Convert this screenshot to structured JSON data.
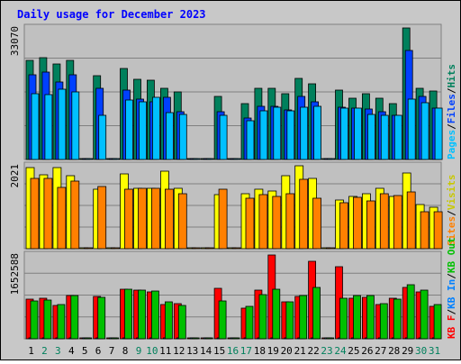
{
  "title": "Daily usage for December 2023",
  "colors": {
    "page_bg": "#c8c8c8",
    "panel_bg": "#c0c0c0",
    "border": "#808080",
    "title": "#0000ff",
    "hits": "#00805c",
    "files": "#0040ff",
    "pages": "#00c0ff",
    "visits": "#ffff00",
    "sites": "#ff8000",
    "kbf": "#ff0000",
    "kbin": "#0080ff",
    "kbout": "#00c000",
    "day_weekday": "#000000",
    "day_weekend": "#00805c"
  },
  "legend": {
    "top": [
      {
        "text": "Pages",
        "color": "#00c0ff"
      },
      {
        "text": "Files",
        "color": "#0040ff"
      },
      {
        "text": "Hits",
        "color": "#00805c"
      }
    ],
    "middle": [
      {
        "text": "Sites",
        "color": "#ff8000"
      },
      {
        "text": "Visits",
        "color": "#c8c800"
      }
    ],
    "bottom": [
      {
        "text": "KB F",
        "color": "#ff0000"
      },
      {
        "text": "KB In",
        "color": "#0080ff"
      },
      {
        "text": "KB Out",
        "color": "#00c000"
      }
    ],
    "separator": "/"
  },
  "chart_data": [
    {
      "type": "bar",
      "panel": "hits-files-pages",
      "ymax_label": "33070",
      "ylim": [
        0,
        33070
      ],
      "categories": [
        "1",
        "2",
        "3",
        "4",
        "5",
        "6",
        "7",
        "8",
        "9",
        "10",
        "11",
        "12",
        "13",
        "14",
        "15",
        "16",
        "17",
        "18",
        "19",
        "20",
        "21",
        "22",
        "23",
        "24",
        "25",
        "26",
        "27",
        "28",
        "29",
        "30",
        "31"
      ],
      "series": [
        {
          "name": "Hits",
          "values": [
            25000,
            25600,
            23900,
            24900,
            0,
            21000,
            0,
            22900,
            20100,
            20000,
            17900,
            17100,
            0,
            0,
            15800,
            0,
            14100,
            17900,
            17800,
            16600,
            20300,
            19100,
            0,
            17400,
            15500,
            16500,
            15400,
            14100,
            33070,
            17800,
            17300
          ]
        },
        {
          "name": "Files",
          "values": [
            21300,
            21900,
            19400,
            21400,
            0,
            18000,
            0,
            17500,
            15200,
            14600,
            15600,
            12100,
            0,
            0,
            11900,
            0,
            10500,
            13400,
            13300,
            12400,
            15900,
            14600,
            0,
            13200,
            13000,
            12700,
            12100,
            11200,
            27300,
            15900,
            13000
          ]
        },
        {
          "name": "Pages",
          "values": [
            16500,
            16300,
            17700,
            17100,
            0,
            11000,
            0,
            15000,
            14500,
            15700,
            11800,
            11300,
            0,
            0,
            11200,
            0,
            9700,
            12200,
            13200,
            12300,
            13100,
            13400,
            0,
            13000,
            12800,
            11400,
            11000,
            11000,
            15100,
            14200,
            12800
          ]
        }
      ]
    },
    {
      "type": "bar",
      "panel": "visits-sites",
      "ymax_label": "2021",
      "ylim": [
        0,
        2021
      ],
      "categories": [
        "1",
        "2",
        "3",
        "4",
        "5",
        "6",
        "7",
        "8",
        "9",
        "10",
        "11",
        "12",
        "13",
        "14",
        "15",
        "16",
        "17",
        "18",
        "19",
        "20",
        "21",
        "22",
        "23",
        "24",
        "25",
        "26",
        "27",
        "28",
        "29",
        "30",
        "31"
      ],
      "series": [
        {
          "name": "Visits",
          "values": [
            1980,
            1800,
            1970,
            1770,
            0,
            1460,
            0,
            1820,
            1470,
            1470,
            1890,
            1470,
            0,
            0,
            1320,
            0,
            1340,
            1450,
            1400,
            1770,
            2021,
            1720,
            0,
            1190,
            1270,
            1350,
            1470,
            1280,
            1840,
            1070,
            1000
          ]
        },
        {
          "name": "Sites",
          "values": [
            1710,
            1710,
            1490,
            1650,
            0,
            1510,
            0,
            1440,
            1480,
            1480,
            1460,
            1330,
            0,
            0,
            1460,
            0,
            1240,
            1320,
            1280,
            1340,
            1700,
            1230,
            0,
            1120,
            1250,
            1160,
            1350,
            1290,
            1380,
            890,
            900
          ]
        }
      ]
    },
    {
      "type": "bar",
      "panel": "kbf-kbin-kbout",
      "ymax_label": "1652588",
      "ylim": [
        0,
        1652588
      ],
      "categories": [
        "1",
        "2",
        "3",
        "4",
        "5",
        "6",
        "7",
        "8",
        "9",
        "10",
        "11",
        "12",
        "13",
        "14",
        "15",
        "16",
        "17",
        "18",
        "19",
        "20",
        "21",
        "22",
        "23",
        "24",
        "25",
        "26",
        "27",
        "28",
        "29",
        "30",
        "31"
      ],
      "series": [
        {
          "name": "KB F",
          "values": [
            781000,
            801000,
            661000,
            851000,
            0,
            831000,
            0,
            981000,
            961000,
            921000,
            681000,
            701000,
            0,
            0,
            1000000,
            0,
            600000,
            956000,
            1652588,
            721000,
            841000,
            1530000,
            0,
            1420000,
            801000,
            821000,
            681000,
            801000,
            1021000,
            931000,
            631000
          ]
        },
        {
          "name": "KB In",
          "values": [
            0,
            0,
            0,
            0,
            0,
            0,
            0,
            0,
            0,
            0,
            0,
            0,
            0,
            0,
            0,
            0,
            0,
            0,
            0,
            0,
            0,
            0,
            0,
            0,
            0,
            0,
            0,
            0,
            0,
            0,
            0
          ]
        },
        {
          "name": "KB Out",
          "values": [
            741000,
            771000,
            681000,
            851000,
            0,
            811000,
            0,
            981000,
            961000,
            941000,
            721000,
            651000,
            0,
            0,
            751000,
            0,
            641000,
            871000,
            971000,
            731000,
            861000,
            1021000,
            0,
            801000,
            851000,
            861000,
            691000,
            781000,
            1061000,
            951000,
            671000
          ]
        }
      ]
    }
  ]
}
